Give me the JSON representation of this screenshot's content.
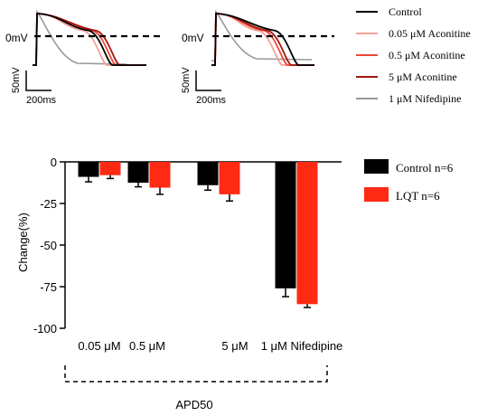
{
  "traces": {
    "zero_label": "0mV",
    "scale_v": "50mV",
    "scale_t": "200ms"
  },
  "trace_legend": [
    {
      "label": "Control",
      "color": "#000000"
    },
    {
      "label": "0.05 μM  Aconitine",
      "color": "#f4a09a"
    },
    {
      "label": "0.5 μM Aconitine",
      "color": "#f0463a"
    },
    {
      "label": "5 μM Aconitine",
      "color": "#a4180f"
    },
    {
      "label": "1 μM Nifedipine",
      "color": "#999999"
    }
  ],
  "chart_data": {
    "type": "bar",
    "title": "",
    "ylabel": "Change(%)",
    "xlabel": "APD50",
    "categories": [
      "0.05 μM",
      "0.5 μM",
      "5 μM",
      "1 μM Nifedipine"
    ],
    "ylim": [
      -100,
      0
    ],
    "yticks": [
      0,
      -25,
      -50,
      -75,
      -100
    ],
    "ytick_labels": [
      "0",
      "-25",
      "-50",
      "-75",
      "-100"
    ],
    "grid": false,
    "legend_position": "right",
    "series": [
      {
        "name": "Control n=6",
        "color": "#000000",
        "values": [
          -9,
          -12.5,
          -14,
          -76
        ],
        "errors": [
          3,
          2.5,
          3,
          5
        ]
      },
      {
        "name": "LQT n=6",
        "color": "#ff2a14",
        "values": [
          -8,
          -15.5,
          -19.5,
          -85.5
        ],
        "errors": [
          2,
          4,
          4,
          2
        ]
      }
    ]
  }
}
